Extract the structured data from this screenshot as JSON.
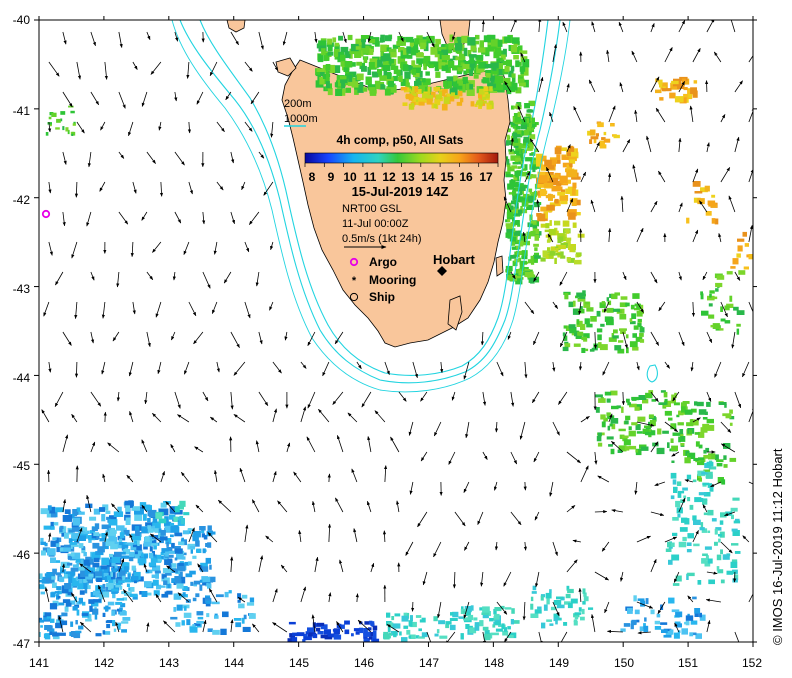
{
  "map": {
    "lon_ticks": [
      "141",
      "142",
      "143",
      "144",
      "145",
      "146",
      "147",
      "148",
      "149",
      "150",
      "151",
      "152"
    ],
    "lat_ticks": [
      "-40",
      "-41",
      "-42",
      "-43",
      "-44",
      "-45",
      "-46",
      "-47"
    ],
    "lon_range": [
      141,
      152
    ],
    "lat_range": [
      -47,
      -40
    ]
  },
  "legend": {
    "isobath_shallow": "200m",
    "isobath_deep": "1000m",
    "composite_title": "4h comp, p50, All Sats",
    "colorbar_ticks": [
      "8",
      "9",
      "10",
      "11",
      "12",
      "13",
      "14",
      "15",
      "16",
      "17"
    ],
    "colorbar_range": [
      7.5,
      17.5
    ],
    "date_label": "15-Jul-2019 14Z",
    "product_label": "NRT00 GSL",
    "product_date": "11-Jul 00:00Z",
    "vector_scale": "0.5m/s (1kt 24h)",
    "symbols": [
      {
        "label": "Argo",
        "symbol": "argo-circle",
        "color": "#e600e6"
      },
      {
        "label": "Mooring",
        "symbol": "mooring-star",
        "color": "#000000"
      },
      {
        "label": "Ship",
        "symbol": "ship-circle",
        "color": "#000000"
      }
    ]
  },
  "places": {
    "hobart": "Hobart"
  },
  "credit": "© IMOS 16-Jul-2019 11:12 Hobart",
  "colors": {
    "land": "#f9c69b",
    "isobath": "#22d4e0",
    "argo": "#e600e6"
  }
}
